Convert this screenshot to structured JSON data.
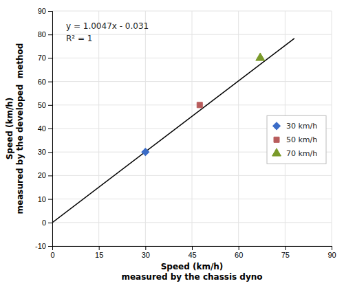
{
  "chart_data": {
    "type": "scatter",
    "x_label": "Speed (km/h)\nmeasured by the chassis dyno",
    "y_label": "Speed (km/h)\nmeasured by the developed  method",
    "xlim": [
      0,
      90
    ],
    "ylim": [
      -10,
      90
    ],
    "xticks": [
      0,
      15,
      30,
      45,
      60,
      75,
      90
    ],
    "yticks": [
      -10,
      0,
      10,
      20,
      30,
      40,
      50,
      60,
      70,
      80,
      90
    ],
    "grid": true,
    "legend": "right",
    "annotations": [
      "y = 1.0047x - 0.031",
      "R² = 1"
    ],
    "series": [
      {
        "name": "30 km/h",
        "color": "#3B6CC7",
        "marker": "diamond",
        "x": [
          30.0
        ],
        "values": [
          30.0
        ]
      },
      {
        "name": "50 km/h",
        "color": "#B85C5C",
        "marker": "square",
        "x": [
          47.5
        ],
        "values": [
          50.0
        ]
      },
      {
        "name": "70 km/h",
        "color": "#7A9A2A",
        "marker": "triangle",
        "x": [
          67.0
        ],
        "values": [
          70.0
        ]
      },
      {
        "type": "line",
        "color": "#000000",
        "line_style": "solid",
        "x": [
          0,
          78
        ],
        "values": [
          -0.031,
          78.3356
        ]
      }
    ]
  }
}
